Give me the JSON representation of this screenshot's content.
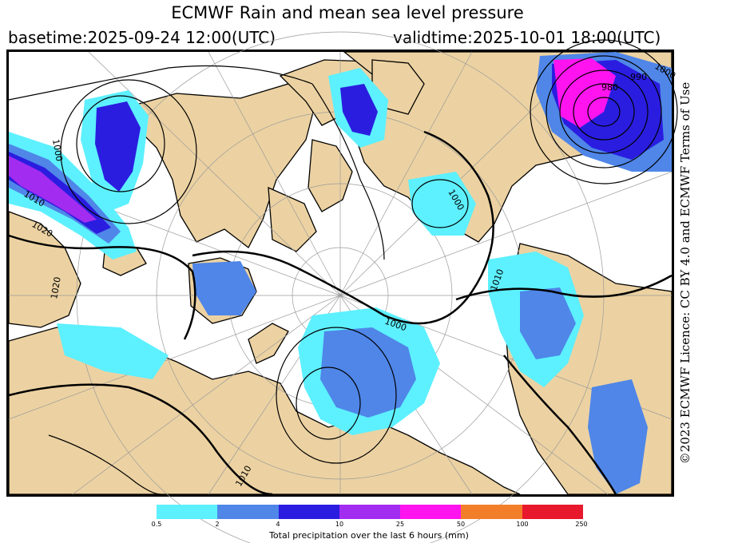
{
  "title": "ECMWF Rain and mean sea level pressure",
  "basetime": "basetime:2025-09-24 12:00(UTC)",
  "validtime": "validtime:2025-10-01 18:00(UTC)",
  "licence": "©2023 ECMWF Licence: CC BY 4.0 and ECMWF Terms of Use",
  "isobar_labels": [
    "1000",
    "1010",
    "1020",
    "980",
    "990",
    "1000",
    "1000",
    "1000",
    "1010",
    "1010",
    "1020"
  ],
  "legend": {
    "title": "Total precipitation over the last 6 hours (mm)",
    "ticks": [
      "0.5",
      "2",
      "4",
      "10",
      "25",
      "50",
      "100",
      "250"
    ],
    "colors": [
      "#5df0ff",
      "#4f86e8",
      "#2a1de0",
      "#a22cef",
      "#ff14ef",
      "#f37e2a",
      "#e8192c"
    ]
  },
  "colors": {
    "land": "#ecd2a2",
    "sea": "#ffffff",
    "rain_light": "#5df0ff",
    "rain_moderate": "#4f86e8",
    "rain_heavy": "#2a1de0",
    "rain_very_heavy": "#a22cef",
    "rain_extreme": "#ff14ef",
    "isobar": "#000000",
    "graticule": "#9a9a9a"
  }
}
